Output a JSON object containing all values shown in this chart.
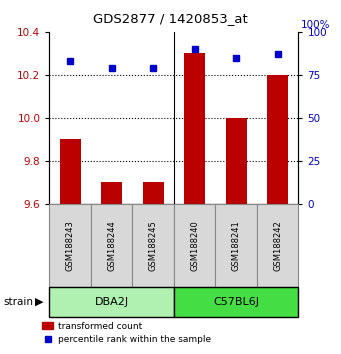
{
  "title": "GDS2877 / 1420853_at",
  "samples": [
    "GSM188243",
    "GSM188244",
    "GSM188245",
    "GSM188240",
    "GSM188241",
    "GSM188242"
  ],
  "red_values": [
    9.9,
    9.7,
    9.7,
    10.3,
    10.0,
    10.2
  ],
  "blue_values": [
    83,
    79,
    79,
    90,
    85,
    87
  ],
  "ylim_left": [
    9.6,
    10.4
  ],
  "ylim_right": [
    0,
    100
  ],
  "yticks_left": [
    9.6,
    9.8,
    10.0,
    10.2,
    10.4
  ],
  "yticks_right": [
    0,
    25,
    50,
    75,
    100
  ],
  "groups": [
    {
      "label": "DBA2J",
      "color": "#b0f0b0",
      "n": 3
    },
    {
      "label": "C57BL6J",
      "color": "#44dd44",
      "n": 3
    }
  ],
  "strain_label": "strain",
  "red_color": "#bb0000",
  "blue_color": "#0000cc",
  "bar_bottom": 9.6,
  "dotted_grid_values": [
    9.8,
    10.0,
    10.2
  ],
  "legend_red": "transformed count",
  "legend_blue": "percentile rank within the sample",
  "sample_box_color": "#d8d8d8",
  "right_axis_top_label": "100%"
}
